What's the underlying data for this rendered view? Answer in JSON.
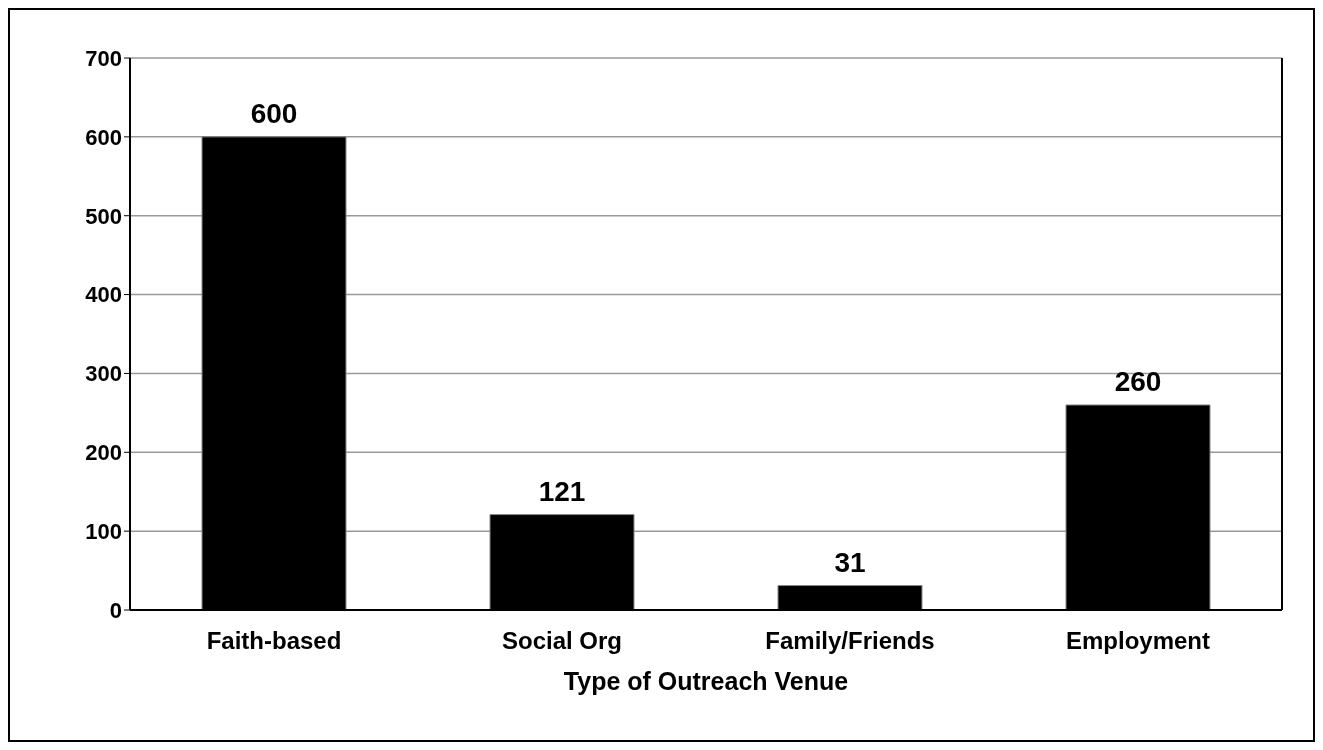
{
  "chart_data": {
    "type": "bar",
    "xlabel": "Type of Outreach Venue",
    "categories": [
      "Faith-based",
      "Social Org",
      "Family/Friends",
      "Employment"
    ],
    "values": [
      600,
      121,
      31,
      260
    ],
    "color": "#000000",
    "ylim": [
      0,
      700
    ],
    "yticks": [
      0,
      100,
      200,
      300,
      400,
      500,
      600,
      700
    ],
    "grid": "y",
    "data_labels": true
  }
}
